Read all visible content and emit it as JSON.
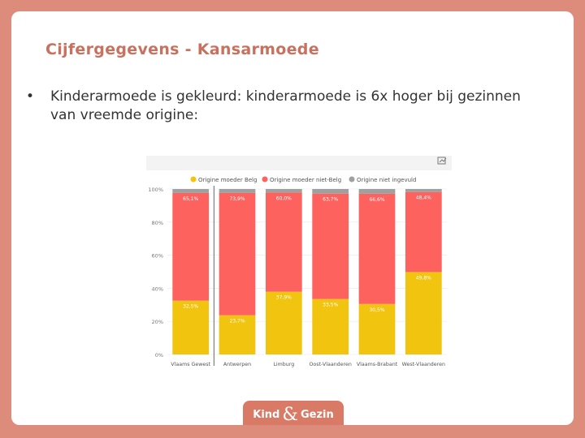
{
  "slide": {
    "title": "Cijfergegevens - Kansarmoede",
    "bullet": "Kinderarmoede is gekleurd: kinderarmoede is 6x hoger bij gezinnen van vreemde origine:",
    "bullet_symbol": "•"
  },
  "logo": {
    "left": "Kind",
    "amp": "&",
    "right": "Gezin"
  },
  "chart_data": {
    "type": "bar",
    "stacked": true,
    "categories": [
      "Vlaams Gewest",
      "Antwerpen",
      "Limburg",
      "Oost-Vlaanderen",
      "Vlaams-Brabant",
      "West-Vlaanderen"
    ],
    "series": [
      {
        "name": "Origine moeder Belg",
        "color": "#f1c40f",
        "values": [
          32.5,
          23.7,
          37.9,
          33.5,
          30.5,
          49.8
        ]
      },
      {
        "name": "Origine moeder niet-Belg",
        "color": "#fd625e",
        "values": [
          65.1,
          73.9,
          60.0,
          63.7,
          66.6,
          48.4
        ]
      },
      {
        "name": "Origine niet ingevuld",
        "color": "#a0a0a0",
        "values": [
          2.4,
          2.4,
          2.1,
          2.8,
          2.9,
          1.8
        ]
      }
    ],
    "data_labels": {
      "Origine moeder Belg": [
        "32,5%",
        "23,7%",
        "37,9%",
        "33,5%",
        "30,5%",
        "49,8%"
      ],
      "Origine moeder niet-Belg": [
        "65,1%",
        "73,9%",
        "60,0%",
        "63,7%",
        "66,6%",
        "48,4%"
      ]
    },
    "yticks": [
      "0%",
      "20%",
      "40%",
      "60%",
      "80%",
      "100%"
    ],
    "ylim": [
      0,
      100
    ],
    "legend_position": "top-left",
    "grid": true
  }
}
